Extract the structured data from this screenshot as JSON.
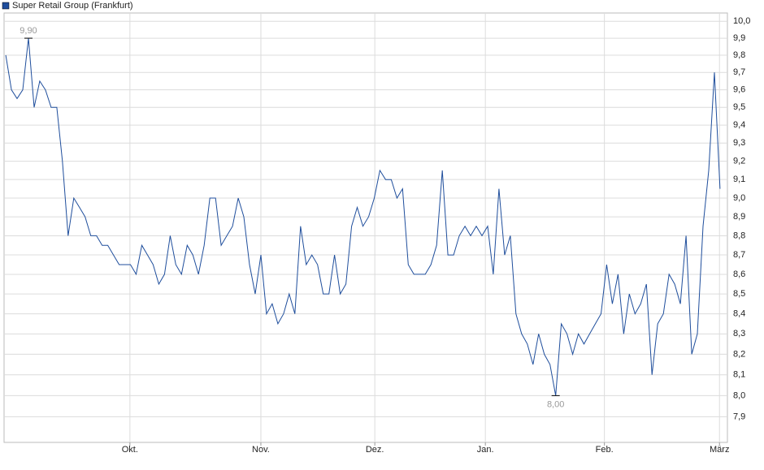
{
  "chart_data": {
    "type": "line",
    "title": "Super Retail Group (Frankfurt)",
    "log_y": true,
    "grid": true,
    "y_axis_side": "right",
    "xlim": [
      -0.3,
      127.3
    ],
    "ylim": [
      7.78,
      10.05
    ],
    "xticks": [
      {
        "value": 21.9,
        "label": "Okt."
      },
      {
        "value": 45.0,
        "label": "Nov."
      },
      {
        "value": 65.1,
        "label": "Dez."
      },
      {
        "value": 84.6,
        "label": "Jan."
      },
      {
        "value": 105.6,
        "label": "Feb."
      },
      {
        "value": 125.9,
        "label": "März"
      }
    ],
    "yticks": [
      {
        "value": 7.9,
        "label": "7,9"
      },
      {
        "value": 8.0,
        "label": "8,0"
      },
      {
        "value": 8.1,
        "label": "8,1"
      },
      {
        "value": 8.2,
        "label": "8,2"
      },
      {
        "value": 8.3,
        "label": "8,3"
      },
      {
        "value": 8.4,
        "label": "8,4"
      },
      {
        "value": 8.5,
        "label": "8,5"
      },
      {
        "value": 8.6,
        "label": "8,6"
      },
      {
        "value": 8.7,
        "label": "8,7"
      },
      {
        "value": 8.8,
        "label": "8,8"
      },
      {
        "value": 8.9,
        "label": "8,9"
      },
      {
        "value": 9.0,
        "label": "9,0"
      },
      {
        "value": 9.1,
        "label": "9,1"
      },
      {
        "value": 9.2,
        "label": "9,2"
      },
      {
        "value": 9.3,
        "label": "9,3"
      },
      {
        "value": 9.4,
        "label": "9,4"
      },
      {
        "value": 9.5,
        "label": "9,5"
      },
      {
        "value": 9.6,
        "label": "9,6"
      },
      {
        "value": 9.7,
        "label": "9,7"
      },
      {
        "value": 9.8,
        "label": "9,8"
      },
      {
        "value": 9.9,
        "label": "9,9"
      },
      {
        "value": 10.0,
        "label": "10,0"
      }
    ],
    "series": [
      {
        "name": "Super Retail Group (Frankfurt)",
        "color": "#1f4e9c",
        "values": [
          9.8,
          9.6,
          9.55,
          9.6,
          9.9,
          9.5,
          9.65,
          9.6,
          9.5,
          9.5,
          9.2,
          8.8,
          9.0,
          8.95,
          8.9,
          8.8,
          8.8,
          8.75,
          8.75,
          8.7,
          8.65,
          8.65,
          8.65,
          8.6,
          8.75,
          8.7,
          8.65,
          8.55,
          8.6,
          8.8,
          8.65,
          8.6,
          8.75,
          8.7,
          8.6,
          8.75,
          9.0,
          9.0,
          8.75,
          8.8,
          8.85,
          9.0,
          8.9,
          8.65,
          8.5,
          8.7,
          8.4,
          8.45,
          8.35,
          8.4,
          8.5,
          8.4,
          8.85,
          8.65,
          8.7,
          8.65,
          8.5,
          8.5,
          8.7,
          8.5,
          8.55,
          8.85,
          8.95,
          8.85,
          8.9,
          9.0,
          9.15,
          9.1,
          9.1,
          9.0,
          9.05,
          8.65,
          8.6,
          8.6,
          8.6,
          8.65,
          8.75,
          9.15,
          8.7,
          8.7,
          8.8,
          8.85,
          8.8,
          8.85,
          8.8,
          8.85,
          8.6,
          9.05,
          8.7,
          8.8,
          8.4,
          8.3,
          8.25,
          8.15,
          8.3,
          8.2,
          8.15,
          8.0,
          8.35,
          8.3,
          8.2,
          8.3,
          8.25,
          8.3,
          8.35,
          8.4,
          8.65,
          8.45,
          8.6,
          8.3,
          8.5,
          8.4,
          8.45,
          8.55,
          8.1,
          8.35,
          8.4,
          8.6,
          8.55,
          8.45,
          8.8,
          8.2,
          8.3,
          8.85,
          9.15,
          9.7,
          9.05
        ]
      }
    ],
    "annotations": [
      {
        "label": "9,90",
        "x": 4,
        "value": 9.9
      },
      {
        "label": "8,00",
        "x": 97,
        "value": 8.0
      }
    ]
  }
}
